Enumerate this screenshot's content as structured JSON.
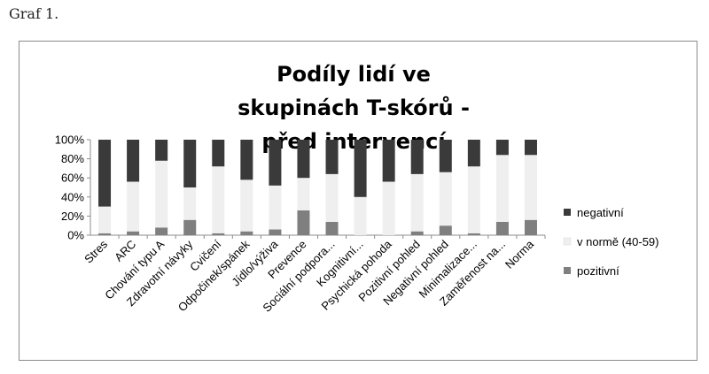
{
  "caption": "Graf 1.",
  "chart_data": {
    "type": "bar",
    "stacked": true,
    "percent": true,
    "title": "Podíly lidí ve skupinách T-skórů - před intervencí",
    "categories": [
      "Stres",
      "ARC",
      "Chování typu A",
      "Zdravotní návyky",
      "Cvičení",
      "Odpočinek/spánek",
      "Jídlo/výživa",
      "Prevence",
      "Sociální podpora...",
      "Kognitivní...",
      "Psychická pohoda",
      "Pozitivní pohled",
      "Negativní pohled",
      "Minimalizace...",
      "Zaměřenost na...",
      "Norma"
    ],
    "series": [
      {
        "name": "pozitivní",
        "color": "#7f7f7f",
        "values": [
          2,
          4,
          8,
          16,
          2,
          4,
          6,
          26,
          14,
          0,
          0,
          4,
          10,
          2,
          14,
          16
        ]
      },
      {
        "name": "v normě (40-59)",
        "color": "#efefef",
        "values": [
          28,
          52,
          70,
          34,
          70,
          54,
          46,
          34,
          50,
          40,
          56,
          60,
          56,
          70,
          70,
          68
        ]
      },
      {
        "name": "negativní",
        "color": "#3a3a3a",
        "values": [
          70,
          44,
          22,
          50,
          28,
          42,
          48,
          40,
          36,
          60,
          44,
          36,
          34,
          28,
          16,
          16
        ]
      }
    ],
    "legend_order": [
      "negativní",
      "v normě (40-59)",
      "pozitivní"
    ],
    "yticks": [
      "0%",
      "20%",
      "40%",
      "60%",
      "80%",
      "100%"
    ],
    "ylim": [
      0,
      100
    ],
    "grid": false,
    "legend_position": "right"
  }
}
